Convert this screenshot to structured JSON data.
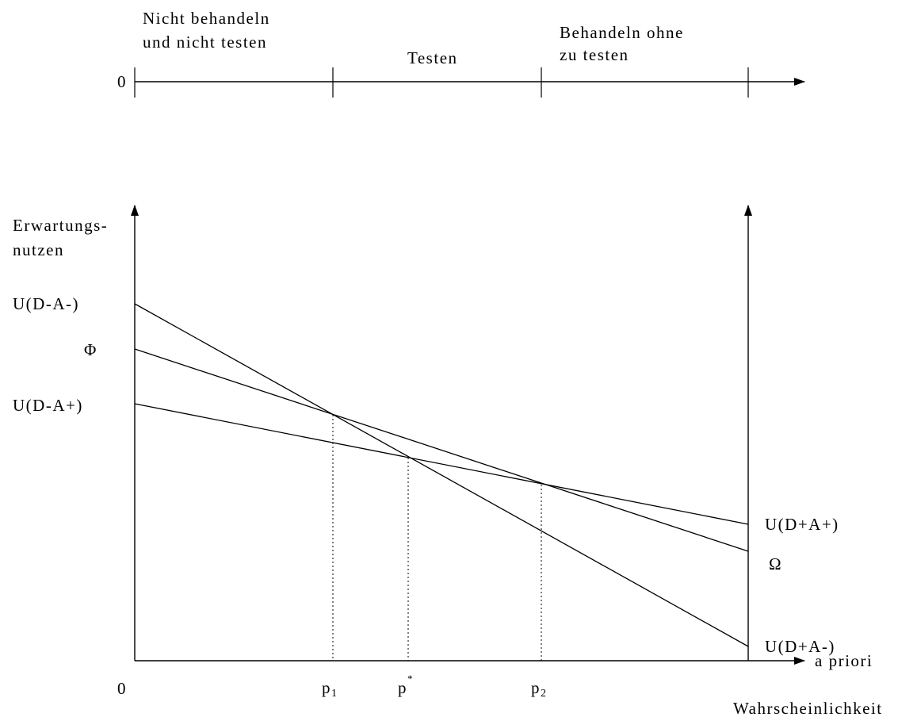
{
  "top_axis": {
    "zero_label": "0",
    "regions": [
      {
        "line1": "Nicht behandeln",
        "line2": "und nicht testen"
      },
      {
        "line1": "Testen",
        "line2": ""
      },
      {
        "line1": "Behandeln ohne",
        "line2": "zu testen"
      }
    ]
  },
  "main_axis": {
    "y_label_line1": "Erwartungs-",
    "y_label_line2": "nutzen",
    "x_label_line1": "a priori",
    "x_label_line2": "Wahrscheinlichkeit",
    "origin_label": "0"
  },
  "left_labels": {
    "u_da_minus": "U(D-A-)",
    "phi": "Φ",
    "u_da_plus": "U(D-A+)"
  },
  "right_labels": {
    "u_dplus_aplus": "U(D+A+)",
    "omega": "Ω",
    "u_dplus_aminus": "U(D+A-)"
  },
  "thresholds": {
    "p1_base": "p",
    "p1_sub": "1",
    "pstar_base": "p",
    "pstar_sup": "*",
    "p2_base": "p",
    "p2_sub": "2"
  },
  "colors": {
    "line": "#000000",
    "background": "#ffffff"
  }
}
